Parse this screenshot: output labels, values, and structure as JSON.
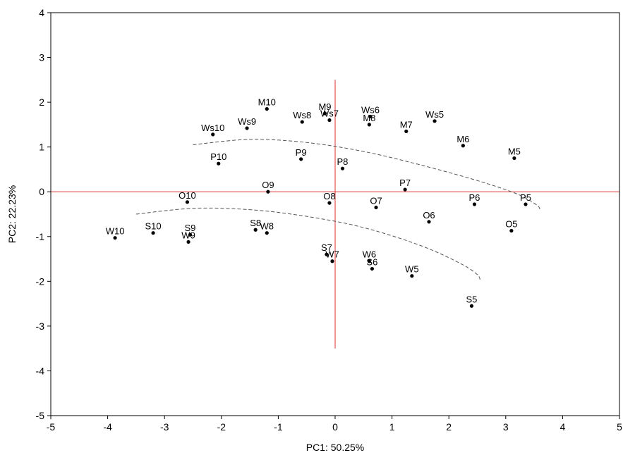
{
  "chart_data": {
    "type": "scatter",
    "xlabel": "PC1: 50.25%",
    "ylabel": "PC2: 22.23%",
    "xlim": [
      -5,
      5
    ],
    "ylim": [
      -5,
      4
    ],
    "xticks": [
      -5,
      -4,
      -3,
      -2,
      -1,
      0,
      1,
      2,
      3,
      4,
      5
    ],
    "yticks": [
      -5,
      -4,
      -3,
      -2,
      -1,
      0,
      1,
      2,
      3,
      4
    ],
    "grid": false,
    "reference_lines": {
      "x": 0,
      "y": 0,
      "x_span": [
        -5,
        5
      ],
      "y_span": [
        -3.5,
        2.5
      ],
      "color": "#e03030"
    },
    "points": [
      {
        "label": "M10",
        "x": -1.2,
        "y": 1.85
      },
      {
        "label": "Ws10",
        "x": -2.15,
        "y": 1.28
      },
      {
        "label": "Ws9",
        "x": -1.55,
        "y": 1.42
      },
      {
        "label": "Ws8",
        "x": -0.58,
        "y": 1.56
      },
      {
        "label": "M9",
        "x": -0.18,
        "y": 1.75
      },
      {
        "label": "Ws7",
        "x": -0.1,
        "y": 1.6
      },
      {
        "label": "Ws6",
        "x": 0.62,
        "y": 1.68
      },
      {
        "label": "M8",
        "x": 0.6,
        "y": 1.5
      },
      {
        "label": "M7",
        "x": 1.25,
        "y": 1.35
      },
      {
        "label": "Ws5",
        "x": 1.75,
        "y": 1.58
      },
      {
        "label": "M6",
        "x": 2.25,
        "y": 1.03
      },
      {
        "label": "M5",
        "x": 3.15,
        "y": 0.75
      },
      {
        "label": "P10",
        "x": -2.05,
        "y": 0.63
      },
      {
        "label": "P9",
        "x": -0.6,
        "y": 0.73
      },
      {
        "label": "P8",
        "x": 0.13,
        "y": 0.52
      },
      {
        "label": "P7",
        "x": 1.23,
        "y": 0.05
      },
      {
        "label": "P6",
        "x": 2.45,
        "y": -0.28
      },
      {
        "label": "P5",
        "x": 3.35,
        "y": -0.28
      },
      {
        "label": "O10",
        "x": -2.6,
        "y": -0.23
      },
      {
        "label": "O9",
        "x": -1.18,
        "y": 0.0
      },
      {
        "label": "O8",
        "x": -0.1,
        "y": -0.25
      },
      {
        "label": "O7",
        "x": 0.72,
        "y": -0.35
      },
      {
        "label": "O6",
        "x": 1.65,
        "y": -0.67
      },
      {
        "label": "O5",
        "x": 3.1,
        "y": -0.87
      },
      {
        "label": "W10",
        "x": -3.87,
        "y": -1.03
      },
      {
        "label": "S10",
        "x": -3.2,
        "y": -0.92
      },
      {
        "label": "S9",
        "x": -2.55,
        "y": -0.96
      },
      {
        "label": "W9",
        "x": -2.58,
        "y": -1.12
      },
      {
        "label": "S8",
        "x": -1.4,
        "y": -0.85
      },
      {
        "label": "W8",
        "x": -1.2,
        "y": -0.92
      },
      {
        "label": "S7",
        "x": -0.15,
        "y": -1.4
      },
      {
        "label": "W7",
        "x": -0.05,
        "y": -1.55
      },
      {
        "label": "W6",
        "x": 0.6,
        "y": -1.55
      },
      {
        "label": "S6",
        "x": 0.65,
        "y": -1.72
      },
      {
        "label": "W5",
        "x": 1.35,
        "y": -1.88
      },
      {
        "label": "S5",
        "x": 2.4,
        "y": -2.55
      }
    ],
    "curves": [
      {
        "name": "",
        "style": "dashed",
        "points": [
          [
            -2.5,
            1.05
          ],
          [
            -1.5,
            1.17
          ],
          [
            -0.5,
            1.1
          ],
          [
            0.5,
            0.9
          ],
          [
            1.5,
            0.6
          ],
          [
            2.5,
            0.25
          ],
          [
            3.2,
            -0.05
          ],
          [
            3.55,
            -0.3
          ],
          [
            3.6,
            -0.42
          ]
        ]
      },
      {
        "name": "",
        "style": "dashed",
        "points": [
          [
            -3.5,
            -0.5
          ],
          [
            -2.5,
            -0.37
          ],
          [
            -1.5,
            -0.4
          ],
          [
            -0.5,
            -0.55
          ],
          [
            0.5,
            -0.8
          ],
          [
            1.5,
            -1.2
          ],
          [
            2.2,
            -1.6
          ],
          [
            2.5,
            -1.85
          ],
          [
            2.55,
            -1.98
          ]
        ]
      }
    ]
  }
}
